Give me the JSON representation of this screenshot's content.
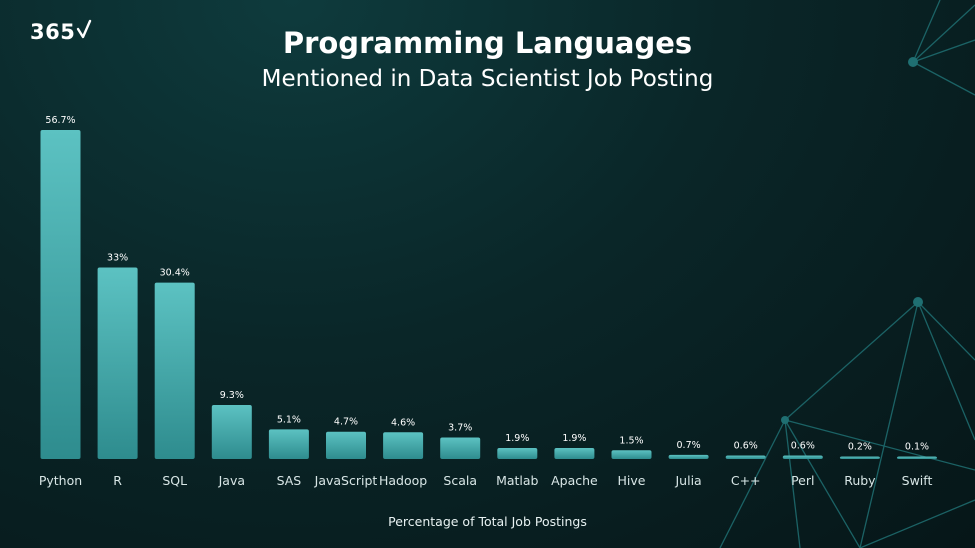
{
  "brand": {
    "logo_text": "365"
  },
  "chart_data": {
    "type": "bar",
    "title": "Programming Languages",
    "subtitle": "Mentioned in Data Scientist Job Posting",
    "xlabel": "Percentage of Total Job Postings",
    "ylabel": "",
    "categories": [
      "Python",
      "R",
      "SQL",
      "Java",
      "SAS",
      "JavaScript",
      "Hadoop",
      "Scala",
      "Matlab",
      "Apache",
      "Hive",
      "Julia",
      "C++",
      "Perl",
      "Ruby",
      "Swift"
    ],
    "values": [
      56.7,
      33,
      30.4,
      9.3,
      5.1,
      4.7,
      4.6,
      3.7,
      1.9,
      1.9,
      1.5,
      0.7,
      0.6,
      0.6,
      0.2,
      0.1
    ],
    "value_labels": [
      "56.7%",
      "33%",
      "30.4%",
      "9.3%",
      "5.1%",
      "4.7%",
      "4.6%",
      "3.7%",
      "1.9%",
      "1.9%",
      "1.5%",
      "0.7%",
      "0.6%",
      "0.6%",
      "0.2%",
      "0.1%"
    ],
    "ylim": [
      0,
      56.7
    ],
    "grid": false,
    "legend": "none",
    "colors": {
      "bar_top": "#5cc2c2",
      "bar_bottom": "#2e8c8e",
      "background": "#0a2628",
      "text": "#ffffff"
    }
  }
}
